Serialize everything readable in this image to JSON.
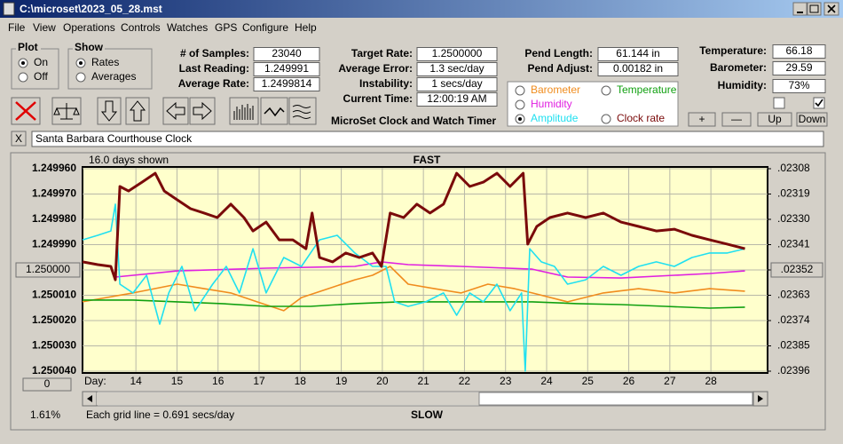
{
  "window": {
    "title": "C:\\microset\\2023_05_28.mst"
  },
  "menu": [
    "File",
    "View",
    "Operations",
    "Controls",
    "Watches",
    "GPS",
    "Configure",
    "Help"
  ],
  "plot_group": {
    "title": "Plot",
    "options": [
      "On",
      "Off"
    ]
  },
  "show_group": {
    "title": "Show",
    "options": [
      "Rates",
      "Averages"
    ]
  },
  "fields": [
    {
      "label": "# of Samples:",
      "value": "23040"
    },
    {
      "label": "Last Reading:",
      "value": "1.249991"
    },
    {
      "label": "Average Rate:",
      "value": "1.2499814"
    },
    {
      "label": "Target Rate:",
      "value": "1.2500000"
    },
    {
      "label": "Average Error:",
      "value": "1.3 sec/day"
    },
    {
      "label": "Instability:",
      "value": "1 secs/day"
    },
    {
      "label": "Current Time:",
      "value": "12:00:19 AM"
    },
    {
      "label": "Pend Length:",
      "value": "61.144 in"
    },
    {
      "label": "Pend Adjust:",
      "value": "0.00182 in"
    },
    {
      "label": "Temperature:",
      "value": "66.18"
    },
    {
      "label": "Barometer:",
      "value": "29.59"
    },
    {
      "label": "Humidity:",
      "value": "73%"
    }
  ],
  "app_title": "MicroSet Clock and Watch Timer",
  "buttons": [
    "+",
    "—",
    "Up",
    "Down"
  ],
  "close_button": "X",
  "clock_name": "Santa Barbara Courthouse Clock",
  "chart_data": {
    "type": "line",
    "header_left": "16.0 days shown",
    "title": "FAST",
    "bottom_label": "SLOW",
    "footnote": "Each grid line = 0.691 secs/day",
    "percent": "1.61%",
    "x_button": "0",
    "xlabel": "Day:",
    "grid": true,
    "xlim": [
      12.7,
      29.38
    ],
    "xticks": [
      14,
      15,
      16,
      17,
      18,
      19,
      20,
      21,
      22,
      23,
      24,
      25,
      26,
      27,
      28
    ],
    "ylim": [
      1.25004,
      1.24996
    ],
    "yticks": [
      {
        "value": 1.24996,
        "label": "1.249960"
      },
      {
        "value": 1.24997,
        "label": "1.249970"
      },
      {
        "value": 1.24998,
        "label": "1.249980"
      },
      {
        "value": 1.24999,
        "label": "1.249990"
      },
      {
        "value": 1.25,
        "label": "1.250000"
      },
      {
        "value": 1.25001,
        "label": "1.250010"
      },
      {
        "value": 1.25002,
        "label": "1.250020"
      },
      {
        "value": 1.25003,
        "label": "1.250030"
      },
      {
        "value": 1.25004,
        "label": "1.250040"
      }
    ],
    "y2lim": [
      0.02396,
      0.02308
    ],
    "y2ticks": [
      {
        "value": 0.02308,
        "label": ".02308"
      },
      {
        "value": 0.02319,
        "label": ".02319"
      },
      {
        "value": 0.0233,
        "label": ".02330"
      },
      {
        "value": 0.02341,
        "label": ".02341"
      },
      {
        "value": 0.02352,
        "label": ".02352"
      },
      {
        "value": 0.02363,
        "label": ".02363"
      },
      {
        "value": 0.02374,
        "label": ".02374"
      },
      {
        "value": 0.02385,
        "label": ".02385"
      },
      {
        "value": 0.02396,
        "label": ".02396"
      }
    ],
    "series": [
      {
        "name": "Barometer",
        "color": "#f08c1e",
        "x": [
          12.7,
          13.28,
          13.93,
          15.01,
          15.66,
          16.31,
          16.95,
          17.6,
          18.03,
          18.68,
          19.33,
          19.76,
          20.19,
          20.63,
          21.27,
          21.92,
          22.57,
          23.22,
          23.65,
          24.51,
          25.38,
          26.24,
          27.11,
          27.97,
          28.83
        ],
        "values": [
          1.2500126,
          1.2500109,
          1.2500091,
          1.2500056,
          1.2500074,
          1.2500091,
          1.2500126,
          1.2500161,
          1.2500109,
          1.2500074,
          1.2500039,
          1.2500021,
          1.2499986,
          1.2500056,
          1.2500074,
          1.2500091,
          1.2500056,
          1.2500074,
          1.2500091,
          1.2500126,
          1.2500091,
          1.2500074,
          1.2500091,
          1.2500074,
          1.2500084
        ]
      },
      {
        "name": "Temperature",
        "color": "#10a010",
        "x": [
          12.7,
          13.93,
          15.01,
          16.09,
          17.17,
          18.25,
          19.33,
          20.41,
          21.49,
          22.57,
          23.65,
          24.73,
          25.81,
          26.89,
          27.97,
          28.83
        ],
        "values": [
          1.2500119,
          1.2500119,
          1.2500126,
          1.2500133,
          1.2500144,
          1.2500144,
          1.2500133,
          1.2500126,
          1.2500126,
          1.2500126,
          1.2500126,
          1.2500133,
          1.2500137,
          1.2500144,
          1.2500151,
          1.2500147
        ]
      },
      {
        "name": "Humidity",
        "color": "#e020e0",
        "x": [
          13.5,
          15.01,
          17.17,
          19.33,
          19.98,
          20.63,
          21.92,
          23.65,
          24.51,
          25.81,
          27.11,
          27.97,
          28.83
        ],
        "values": [
          1.2500028,
          1.2500004,
          1.2499993,
          1.2499986,
          1.2499968,
          1.2499979,
          1.2499986,
          1.2499997,
          1.2500028,
          1.2500032,
          1.2500021,
          1.2500014,
          1.2500004
        ]
      },
      {
        "name": "Amplitude",
        "color": "#20e0f0",
        "x": [
          12.7,
          13.07,
          13.39,
          13.5,
          13.61,
          13.93,
          14.26,
          14.58,
          14.8,
          15.12,
          15.44,
          15.87,
          16.2,
          16.52,
          16.85,
          17.17,
          17.6,
          18.03,
          18.47,
          18.9,
          19.33,
          19.76,
          20.09,
          20.3,
          20.63,
          21.06,
          21.49,
          21.81,
          22.13,
          22.46,
          22.79,
          23.11,
          23.39,
          23.48,
          23.59,
          23.87,
          24.19,
          24.51,
          24.95,
          25.38,
          25.81,
          26.24,
          26.67,
          27.11,
          27.54,
          27.97,
          28.4,
          28.83
        ],
        "values": [
          1.2499881,
          1.2499863,
          1.2499846,
          1.249974,
          1.2500056,
          1.2500091,
          1.2500021,
          1.2500214,
          1.2500091,
          1.2499986,
          1.2500161,
          1.2500056,
          1.2499986,
          1.2500091,
          1.2499916,
          1.2500091,
          1.2499951,
          1.2499986,
          1.2499881,
          1.2499863,
          1.2499933,
          1.2499986,
          1.2499986,
          1.2500126,
          1.2500144,
          1.2500126,
          1.2500091,
          1.2500179,
          1.2500091,
          1.2500126,
          1.2500056,
          1.2500161,
          1.2500091,
          1.25004,
          1.2499916,
          1.2499968,
          1.2499986,
          1.2500056,
          1.2500039,
          1.2499986,
          1.2500021,
          1.2499986,
          1.2499968,
          1.2499986,
          1.2499951,
          1.2499933,
          1.2499933,
          1.2499916
        ]
      },
      {
        "name": "Clock rate",
        "color": "#7a0a0a",
        "x": [
          12.7,
          13.07,
          13.39,
          13.5,
          13.61,
          13.82,
          14.15,
          14.47,
          14.69,
          15.01,
          15.33,
          15.66,
          15.98,
          16.31,
          16.63,
          16.85,
          17.17,
          17.49,
          17.82,
          18.14,
          18.29,
          18.47,
          18.79,
          19.11,
          19.44,
          19.76,
          19.98,
          20.19,
          20.52,
          20.84,
          21.16,
          21.49,
          21.81,
          22.13,
          22.46,
          22.79,
          23.11,
          23.43,
          23.54,
          23.76,
          24.08,
          24.51,
          24.95,
          25.38,
          25.81,
          26.24,
          26.67,
          27.11,
          27.54,
          27.97,
          28.4,
          28.83
        ],
        "values": [
          1.2499968,
          1.2499979,
          1.2499986,
          1.2500039,
          1.249967,
          1.2499688,
          1.2499653,
          1.2499618,
          1.2499688,
          1.2499723,
          1.2499758,
          1.2499775,
          1.2499793,
          1.249974,
          1.2499793,
          1.2499846,
          1.2499811,
          1.2499881,
          1.2499881,
          1.2499916,
          1.2499775,
          1.2499951,
          1.2499968,
          1.2499933,
          1.2499951,
          1.2499933,
          1.2499986,
          1.2499775,
          1.2499793,
          1.249974,
          1.2499775,
          1.249974,
          1.2499618,
          1.249967,
          1.2499653,
          1.2499618,
          1.249967,
          1.2499618,
          1.2499898,
          1.2499828,
          1.2499793,
          1.2499775,
          1.2499793,
          1.2499775,
          1.2499811,
          1.2499828,
          1.2499846,
          1.2499839,
          1.2499863,
          1.2499881,
          1.2499898,
          1.2499916
        ]
      }
    ]
  }
}
